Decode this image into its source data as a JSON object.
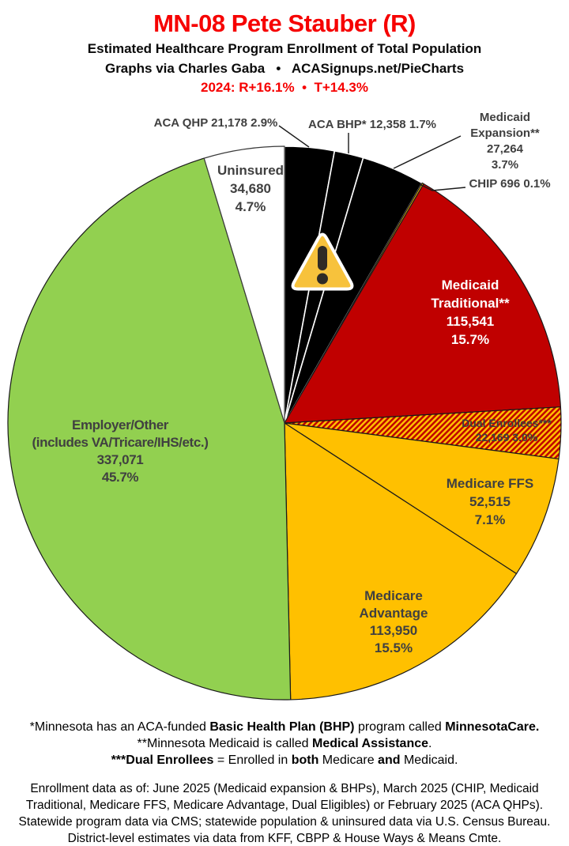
{
  "header": {
    "title": "MN-08 Pete Stauber (R)",
    "subtitle": "Estimated Healthcare Program Enrollment of Total Population",
    "credit": "Graphs via Charles Gaba   •   ACASignups.net/PieCharts",
    "partisan_lean": "2024: R+16.1%  •  T+14.3%"
  },
  "chart_data": {
    "type": "pie",
    "start_angle_deg": 0,
    "direction": "clockwise",
    "legend_position": "labels-on-and-around-pie",
    "hatch": {
      "base": "#FFC000",
      "stripe": "#C00000"
    },
    "slices": [
      {
        "id": "aca-qhp",
        "name": "ACA QHP",
        "enrollment": "21,178",
        "pct": 2.9,
        "fill": "#000000",
        "stroke": "#FFFFFF",
        "label_placement": "outside",
        "label_lines": [
          "ACA QHP 21,178 2.9%"
        ]
      },
      {
        "id": "aca-bhp",
        "name": "ACA BHP*",
        "enrollment": "12,358",
        "pct": 1.7,
        "fill": "#000000",
        "stroke": "#FFFFFF",
        "label_placement": "outside",
        "label_lines": [
          "ACA BHP* 12,358 1.7%"
        ]
      },
      {
        "id": "medicaid-expansion",
        "name": "Medicaid Expansion**",
        "enrollment": "27,264",
        "pct": 3.7,
        "fill": "#000000",
        "stroke": "#FFFFFF",
        "label_placement": "outside",
        "label_lines": [
          "Medicaid",
          "Expansion**",
          "27,264",
          "3.7%"
        ]
      },
      {
        "id": "chip",
        "name": "CHIP",
        "enrollment": "696",
        "pct": 0.1,
        "fill": "#FFC000",
        "stroke": "#1A1A1A",
        "label_placement": "outside",
        "label_lines": [
          "CHIP 696 0.1%"
        ]
      },
      {
        "id": "medicaid-traditional",
        "name": "Medicaid Traditional**",
        "enrollment": "115,541",
        "pct": 15.7,
        "fill": "#C00000",
        "stroke": "#1A1A1A",
        "label_placement": "inside",
        "label_color": "#FFFFFF",
        "label_lines": [
          "Medicaid",
          "Traditional**",
          "115,541",
          "15.7%"
        ]
      },
      {
        "id": "dual-enrollees",
        "name": "Dual Enrollees***",
        "enrollment": "22,169",
        "pct": 3.0,
        "fill": "hatch",
        "stroke": "#1A1A1A",
        "label_placement": "inside",
        "label_lines": [
          "Dual Enrollees***",
          "22,169 3.0%"
        ]
      },
      {
        "id": "medicare-ffs",
        "name": "Medicare FFS",
        "enrollment": "52,515",
        "pct": 7.1,
        "fill": "#FFC000",
        "stroke": "#1A1A1A",
        "label_placement": "inside",
        "label_lines": [
          "Medicare FFS",
          "52,515",
          "7.1%"
        ]
      },
      {
        "id": "medicare-advantage",
        "name": "Medicare Advantage",
        "enrollment": "113,950",
        "pct": 15.5,
        "fill": "#FFC000",
        "stroke": "#1A1A1A",
        "label_placement": "inside",
        "label_lines": [
          "Medicare",
          "Advantage",
          "113,950",
          "15.5%"
        ]
      },
      {
        "id": "employer-other",
        "name": "Employer/Other (includes VA/Tricare/IHS/etc.)",
        "enrollment": "337,071",
        "pct": 45.7,
        "fill": "#92D050",
        "stroke": "#1A1A1A",
        "label_placement": "inside",
        "label_lines": [
          "Employer/Other",
          "(includes VA/Tricare/IHS/etc.)",
          "337,071",
          "45.7%"
        ]
      },
      {
        "id": "uninsured",
        "name": "Uninsured",
        "enrollment": "34,680",
        "pct": 4.7,
        "fill": "#FFFFFF",
        "stroke": "#3A3A3A",
        "label_placement": "inside",
        "label_lines": [
          "Uninsured",
          "34,680",
          "4.7%"
        ]
      }
    ]
  },
  "icons": {
    "warning": "warning-icon"
  },
  "footnotes": {
    "f1": [
      "*Minnesota has an ACA-funded ",
      "Basic Health Plan (BHP)",
      " program called ",
      "MinnesotaCare."
    ],
    "f2": [
      "**Minnesota Medicaid is called ",
      "Medical Assistance",
      "."
    ],
    "f3": [
      "***Dual Enrollees",
      " = Enrolled in ",
      "both",
      " Medicare ",
      "and",
      " Medicaid."
    ]
  },
  "source_note_lines": [
    "Enrollment data as of: June 2025 (Medicaid expansion & BHPs), March 2025 (CHIP, Medicaid",
    "Traditional, Medicare FFS, Medicare Advantage, Dual Eligibles) or February 2025 (ACA QHPs).",
    "Statewide program data via CMS; statewide population & uninsured data via U.S. Census Bureau.",
    "District-level estimates via data from KFF, CBPP & House Ways & Means Cmte."
  ]
}
